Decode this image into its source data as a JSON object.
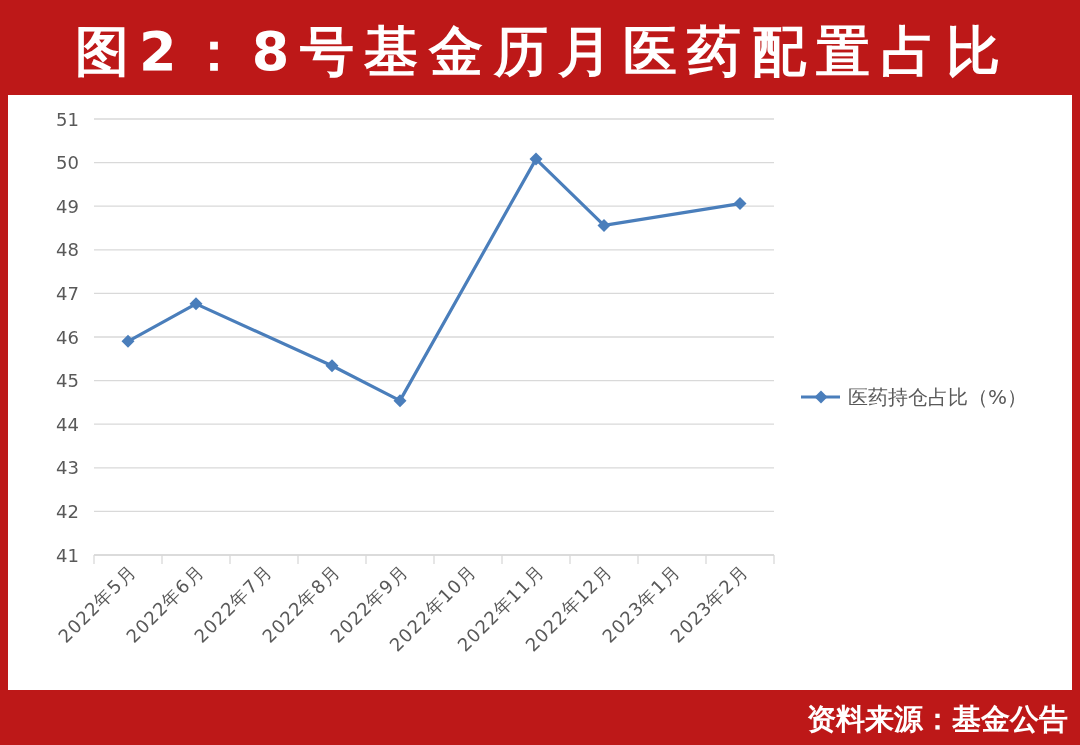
{
  "chart_data": {
    "type": "line",
    "title": "图2：8号基金历月医药配置占比",
    "annotations": [
      "资料来源：基金公告"
    ],
    "categories": [
      "2022年5月",
      "2022年6月",
      "2022年7月",
      "2022年8月",
      "2022年9月",
      "2022年10月",
      "2022年11月",
      "2022年12月",
      "2023年1月",
      "2023年2月"
    ],
    "series": [
      {
        "name": "医药持仓占比（%）",
        "color": "#4a7ebb",
        "values": [
          45.9,
          46.76,
          null,
          45.34,
          44.54,
          null,
          50.08,
          48.56,
          null,
          49.06
        ]
      }
    ],
    "ylim": [
      41,
      51
    ],
    "yticks": [
      41,
      42,
      43,
      44,
      45,
      46,
      47,
      48,
      49,
      50,
      51
    ],
    "grid": "y",
    "legend": "right",
    "marker": "diamond",
    "line_style": "solid"
  }
}
